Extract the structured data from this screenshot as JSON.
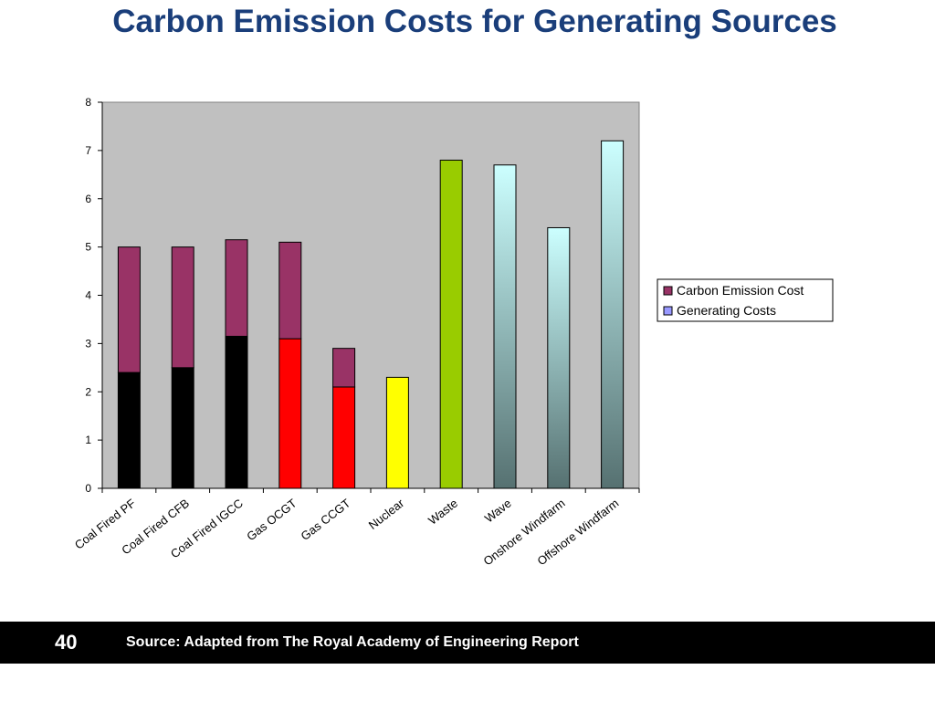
{
  "slide": {
    "title": "Carbon Emission Costs for Generating Sources",
    "page_number": "40",
    "source": "Source: Adapted from The Royal Academy of Engineering Report"
  },
  "colors": {
    "title": "#1a3e7a",
    "plot_background": "#c0c0c0",
    "carbon_emission_cost": "#993366",
    "generating_costs_legend": "#9999ff",
    "coal": "#000000",
    "gas": "#ff0000",
    "nuclear": "#ffff00",
    "waste": "#99cc00",
    "renewable_top": "#ccffff",
    "renewable_bottom": "#567171"
  },
  "chart_data": {
    "type": "bar",
    "stacked": true,
    "categories": [
      "Coal Fired PF",
      "Coal Fired CFB",
      "Coal Fired IGCC",
      "Gas OCGT",
      "Gas CCGT",
      "Nuclear",
      "Waste",
      "Wave",
      "Onshore Windfarm",
      "Offshore Windfarm"
    ],
    "series": [
      {
        "name": "Generating Costs",
        "values": [
          2.4,
          2.5,
          3.15,
          3.1,
          2.1,
          2.3,
          6.8,
          6.7,
          5.4,
          7.2
        ]
      },
      {
        "name": "Carbon Emission Cost",
        "values": [
          2.6,
          2.5,
          2.0,
          2.0,
          0.8,
          0,
          0,
          0,
          0,
          0
        ]
      }
    ],
    "bar_fills": [
      "coal",
      "coal",
      "coal",
      "gas",
      "gas",
      "nuclear",
      "waste",
      "renewable",
      "renewable",
      "renewable"
    ],
    "ylim": [
      0,
      8
    ],
    "yticks": [
      0,
      1,
      2,
      3,
      4,
      5,
      6,
      7,
      8
    ],
    "legend": [
      "Carbon Emission Cost",
      "Generating Costs"
    ],
    "legend_position": "right",
    "grid": false,
    "xlabel": "",
    "ylabel": ""
  }
}
